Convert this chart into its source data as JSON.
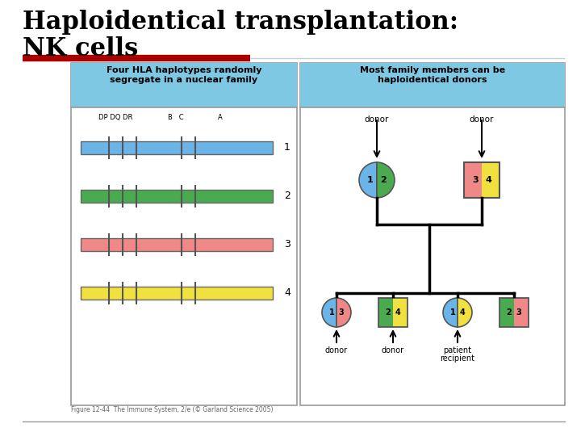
{
  "title_line1": "Haploidentical transplantation:",
  "title_line2": "NK cells",
  "title_fontsize": 22,
  "bg_color": "#ffffff",
  "separator_red_color": "#aa0000",
  "box_header_color": "#7ec8e3",
  "box_border_color": "#999999",
  "left_box_title": "Four HLA haplotypes randomly\nsegregate in a nuclear family",
  "right_box_title": "Most family members can be\nhaploidentical donors",
  "hap_colors": [
    "#6ab4e8",
    "#4aaa50",
    "#f08888",
    "#f0e040"
  ],
  "hap_labels": [
    "1",
    "2",
    "3",
    "4"
  ],
  "figure_caption": "Figure 12-44  The Immune System, 2/e (© Garland Science 2005)",
  "bottom_line_color": "#999999",
  "arrow_color": "#ffffff"
}
